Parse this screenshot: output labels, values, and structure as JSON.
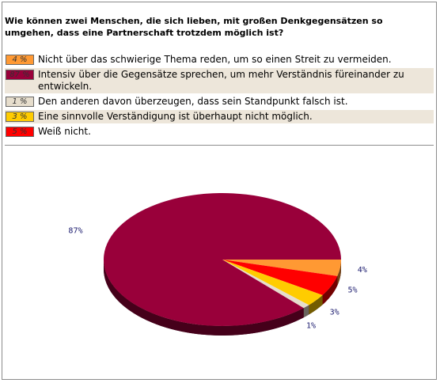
{
  "poll": {
    "question": "Wie können zwei Menschen, die sich lieben, mit großen Denkgegensätzen so umgehen, dass eine Partnerschaft trotzdem möglich ist?",
    "answers": [
      {
        "badge": "4 %",
        "text": "Nicht über das schwierige Thema reden, um so einen Streit zu vermeiden.",
        "color": "#ff9933"
      },
      {
        "badge": "87 %",
        "text": "Intensiv über die Gegensätze sprechen, um mehr Verständnis füreinander zu entwickeln.",
        "color": "#99003a"
      },
      {
        "badge": "1 %",
        "text": "Den anderen davon überzeugen, dass sein Standpunkt falsch ist.",
        "color": "#e6ddcc"
      },
      {
        "badge": "3 %",
        "text": "Eine sinnvolle Verständigung ist überhaupt nicht möglich.",
        "color": "#ffcc00"
      },
      {
        "badge": "5 %",
        "text": "Weiß nicht.",
        "color": "#ff0000"
      }
    ]
  },
  "chart_data": {
    "type": "pie",
    "title": "",
    "slices": [
      {
        "value": 4,
        "label": "4%",
        "color": "#ff9933"
      },
      {
        "value": 5,
        "label": "5%",
        "color": "#ff0000"
      },
      {
        "value": 3,
        "label": "3%",
        "color": "#ffcc00"
      },
      {
        "value": 1,
        "label": "1%",
        "color": "#e6ddcc"
      },
      {
        "value": 87,
        "label": "87%",
        "color": "#99003a"
      }
    ]
  }
}
